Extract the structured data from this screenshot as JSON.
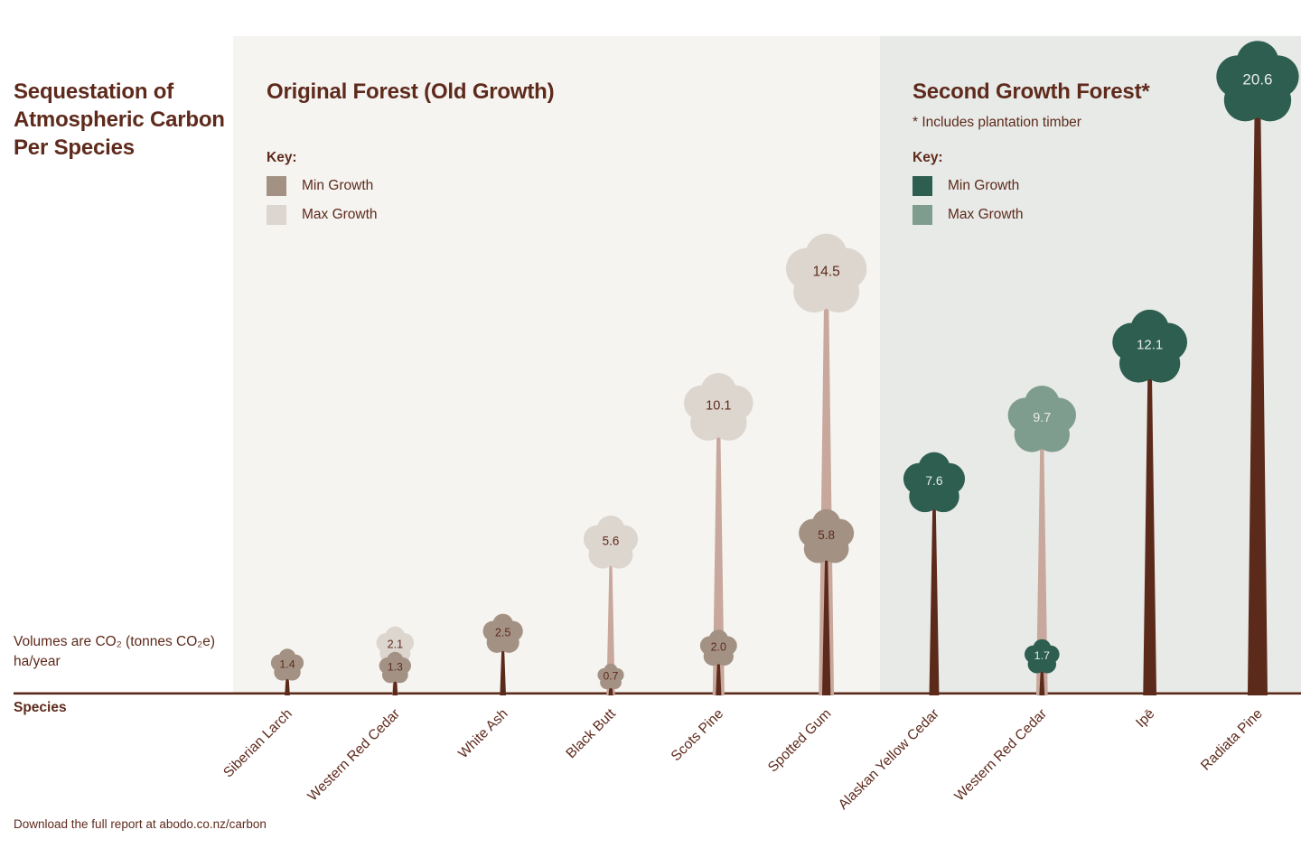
{
  "page": {
    "title_lines": [
      "Sequestation of",
      "Atmospheric Carbon",
      "Per Species"
    ],
    "volumes_note_lines": [
      "Volumes are CO₂ (tonnes CO₂e)",
      "ha/year"
    ],
    "species_axis_label": "Species",
    "footer": "Download the full report at abodo.co.nz/carbon"
  },
  "panels": [
    {
      "id": "old-growth",
      "title": "Original Forest (Old Growth)",
      "subtitle": "",
      "key_label": "Key:",
      "bg": "#f5f4f0",
      "value_text_color": "#5e2a1c",
      "legend": [
        {
          "label": "Min Growth",
          "color": "#a39284"
        },
        {
          "label": "Max Growth",
          "color": "#ddd6cf"
        }
      ]
    },
    {
      "id": "second-growth",
      "title": "Second Growth Forest*",
      "subtitle": "* Includes plantation timber",
      "key_label": "Key:",
      "bg": "#e8eae7",
      "value_text_color": "#e9ece8",
      "legend": [
        {
          "label": "Min Growth",
          "color": "#2d5e50"
        },
        {
          "label": "Max Growth",
          "color": "#7e9d8e"
        }
      ]
    }
  ],
  "colors": {
    "text": "#5e2a1c",
    "trunk_min": "#5c2a1b",
    "trunk_max": "#c8a79c",
    "baseline": "#5c2a1b"
  },
  "chart_data": {
    "type": "bar",
    "variant": "pictorial-trees",
    "title": "Sequestation of Atmospheric Carbon Per Species",
    "unit": "tonnes CO₂e per ha/year",
    "xlabel": "Species",
    "ylim": [
      0,
      20.6
    ],
    "groups": [
      "Original Forest (Old Growth)",
      "Second Growth Forest* (includes plantation timber)"
    ],
    "series_note": "Each species shows min growth and max growth annual carbon sequestration; single-value species show one tree",
    "species": [
      {
        "name": "Siberian Larch",
        "panel": 0,
        "min": 1.4,
        "max": null
      },
      {
        "name": "Western Red Cedar",
        "panel": 0,
        "min": 1.3,
        "max": 2.1
      },
      {
        "name": "White Ash",
        "panel": 0,
        "min": 2.5,
        "max": null
      },
      {
        "name": "Black Butt",
        "panel": 0,
        "min": 0.7,
        "max": 5.6
      },
      {
        "name": "Scots Pine",
        "panel": 0,
        "min": 2.0,
        "max": 10.1
      },
      {
        "name": "Spotted Gum",
        "panel": 0,
        "min": 5.8,
        "max": 14.5
      },
      {
        "name": "Alaskan Yellow Cedar",
        "panel": 1,
        "min": 7.6,
        "max": null
      },
      {
        "name": "Western Red Cedar",
        "panel": 1,
        "min": 1.7,
        "max": 9.7
      },
      {
        "name": "Ipē",
        "panel": 1,
        "min": 12.1,
        "max": null
      },
      {
        "name": "Radiata Pine",
        "panel": 1,
        "min": 20.6,
        "max": null
      }
    ]
  }
}
